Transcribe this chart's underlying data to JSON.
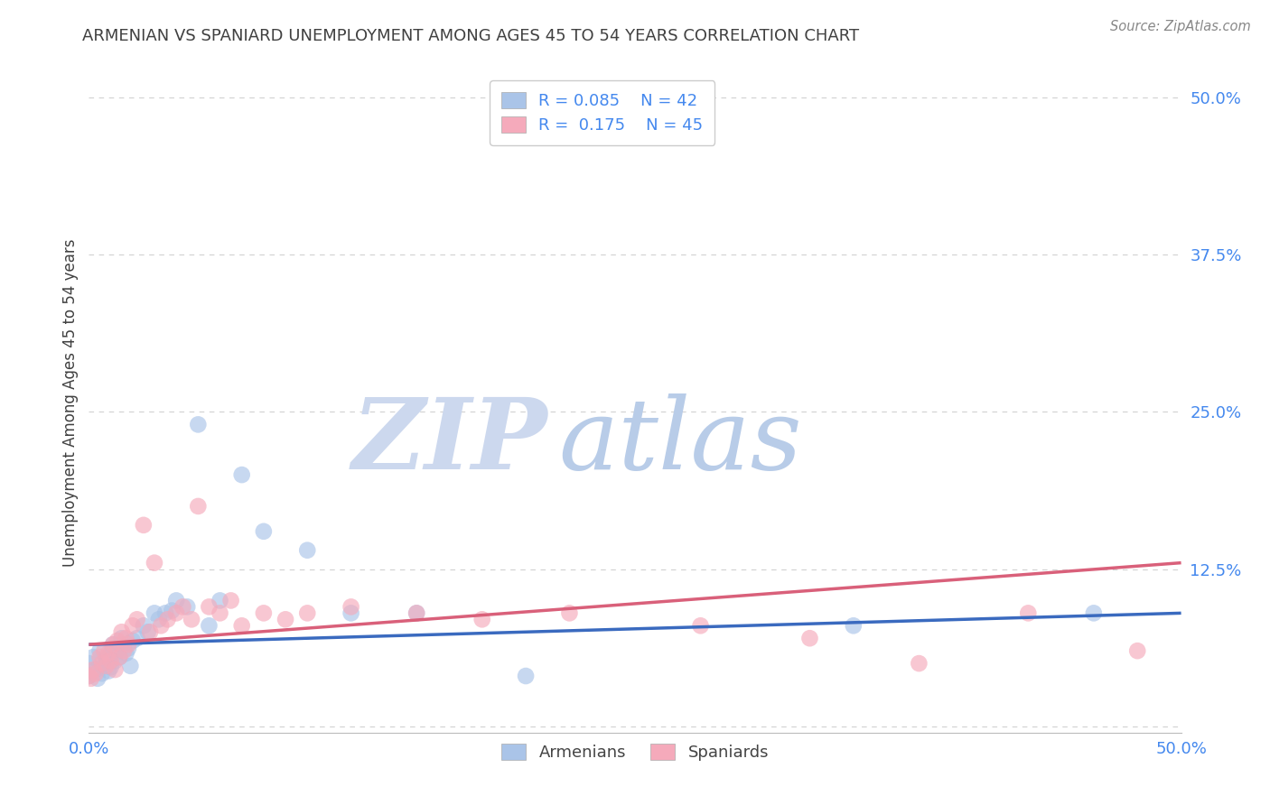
{
  "title": "ARMENIAN VS SPANIARD UNEMPLOYMENT AMONG AGES 45 TO 54 YEARS CORRELATION CHART",
  "source": "Source: ZipAtlas.com",
  "ylabel": "Unemployment Among Ages 45 to 54 years",
  "xlim": [
    0.0,
    0.5
  ],
  "ylim": [
    -0.005,
    0.52
  ],
  "armenians_R": 0.085,
  "armenians_N": 42,
  "spaniards_R": 0.175,
  "spaniards_N": 45,
  "armenian_color": "#aac4e8",
  "spaniard_color": "#f5aabb",
  "armenian_line_color": "#3a6abf",
  "spaniard_line_color": "#d9607a",
  "background_color": "#ffffff",
  "grid_color": "#cccccc",
  "title_color": "#404040",
  "axis_label_color": "#404040",
  "tick_color": "#4488ee",
  "zip_color": "#ccd8ee",
  "atlas_color": "#b8cce8",
  "armenians_x": [
    0.0,
    0.0,
    0.002,
    0.003,
    0.004,
    0.005,
    0.006,
    0.007,
    0.008,
    0.009,
    0.01,
    0.01,
    0.011,
    0.012,
    0.013,
    0.014,
    0.015,
    0.016,
    0.017,
    0.018,
    0.019,
    0.02,
    0.022,
    0.025,
    0.027,
    0.03,
    0.032,
    0.035,
    0.038,
    0.04,
    0.045,
    0.05,
    0.055,
    0.06,
    0.07,
    0.08,
    0.1,
    0.12,
    0.15,
    0.2,
    0.35,
    0.46
  ],
  "armenians_y": [
    0.05,
    0.04,
    0.055,
    0.045,
    0.038,
    0.06,
    0.042,
    0.048,
    0.053,
    0.044,
    0.058,
    0.047,
    0.065,
    0.052,
    0.06,
    0.055,
    0.07,
    0.065,
    0.058,
    0.062,
    0.048,
    0.068,
    0.07,
    0.08,
    0.075,
    0.09,
    0.085,
    0.09,
    0.092,
    0.1,
    0.095,
    0.24,
    0.08,
    0.1,
    0.2,
    0.155,
    0.14,
    0.09,
    0.09,
    0.04,
    0.08,
    0.09
  ],
  "spaniards_x": [
    0.0,
    0.001,
    0.002,
    0.003,
    0.005,
    0.006,
    0.007,
    0.008,
    0.009,
    0.01,
    0.011,
    0.012,
    0.013,
    0.014,
    0.015,
    0.016,
    0.017,
    0.018,
    0.02,
    0.022,
    0.025,
    0.028,
    0.03,
    0.033,
    0.036,
    0.04,
    0.043,
    0.047,
    0.05,
    0.055,
    0.06,
    0.065,
    0.07,
    0.08,
    0.09,
    0.1,
    0.12,
    0.15,
    0.18,
    0.22,
    0.28,
    0.33,
    0.38,
    0.43,
    0.48
  ],
  "spaniards_y": [
    0.04,
    0.038,
    0.045,
    0.042,
    0.055,
    0.05,
    0.06,
    0.048,
    0.058,
    0.052,
    0.065,
    0.045,
    0.068,
    0.055,
    0.075,
    0.06,
    0.07,
    0.065,
    0.08,
    0.085,
    0.16,
    0.075,
    0.13,
    0.08,
    0.085,
    0.09,
    0.095,
    0.085,
    0.175,
    0.095,
    0.09,
    0.1,
    0.08,
    0.09,
    0.085,
    0.09,
    0.095,
    0.09,
    0.085,
    0.09,
    0.08,
    0.07,
    0.05,
    0.09,
    0.06
  ]
}
